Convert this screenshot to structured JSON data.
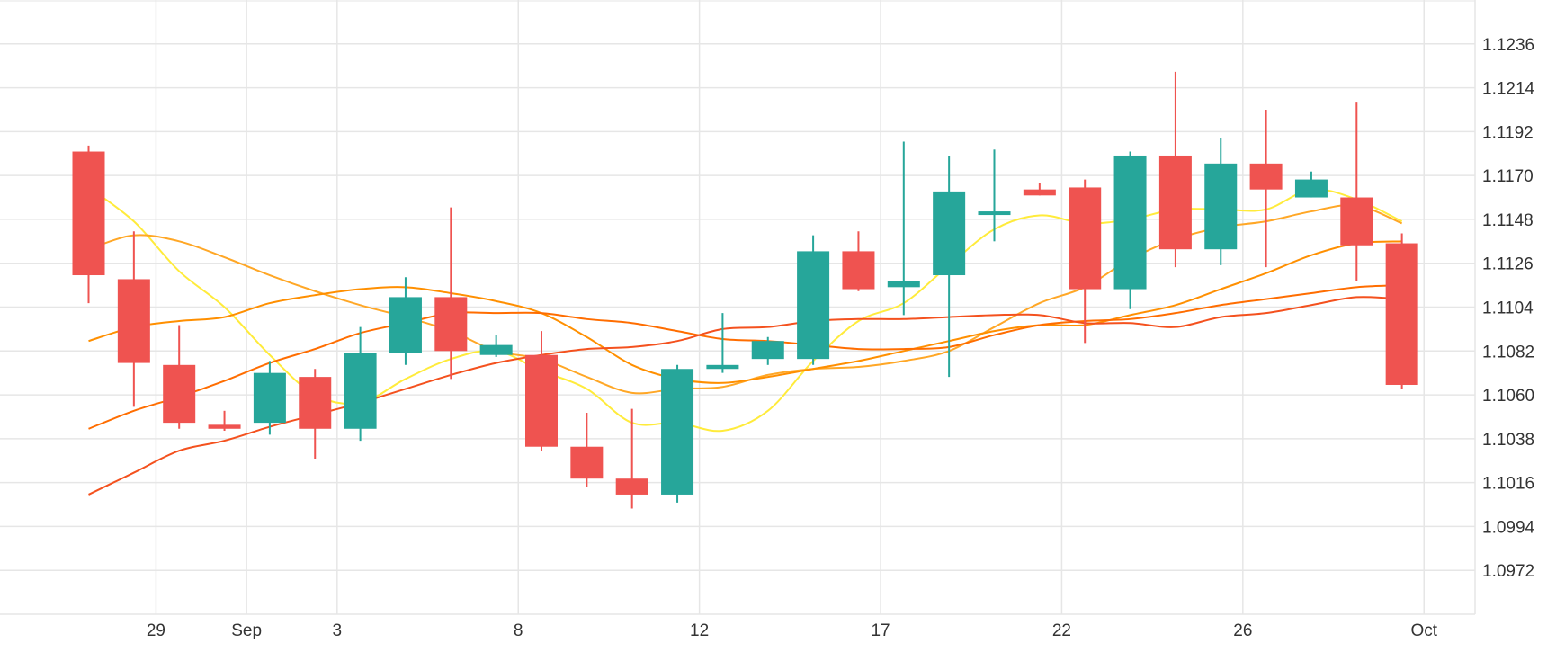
{
  "chart_data": {
    "type": "candlestick",
    "title": "",
    "xlabel": "",
    "ylabel": "",
    "ylim": [
      1.095,
      1.1258
    ],
    "grid": true,
    "y_ticks": [
      "1.1236",
      "1.1214",
      "1.1192",
      "1.1170",
      "1.1148",
      "1.1126",
      "1.1104",
      "1.1082",
      "1.1060",
      "1.1038",
      "1.1016",
      "1.0994",
      "1.0972"
    ],
    "x_ticks": [
      {
        "label": "29",
        "index": 1
      },
      {
        "label": "Sep",
        "index": 3
      },
      {
        "label": "3",
        "index": 5
      },
      {
        "label": "8",
        "index": 9
      },
      {
        "label": "12",
        "index": 13
      },
      {
        "label": "17",
        "index": 17
      },
      {
        "label": "22",
        "index": 21
      },
      {
        "label": "26",
        "index": 25
      },
      {
        "label": "Oct",
        "index": 29
      }
    ],
    "colors": {
      "up": "#26a69a",
      "down": "#ef5350",
      "grid": "#e6e6e6"
    },
    "candles": [
      {
        "o": 1.1182,
        "h": 1.1185,
        "l": 1.1106,
        "c": 1.112
      },
      {
        "o": 1.1118,
        "h": 1.1142,
        "l": 1.1054,
        "c": 1.1076
      },
      {
        "o": 1.1075,
        "h": 1.1095,
        "l": 1.1043,
        "c": 1.1046
      },
      {
        "o": 1.1045,
        "h": 1.1052,
        "l": 1.1042,
        "c": 1.1043
      },
      {
        "o": 1.1046,
        "h": 1.1077,
        "l": 1.104,
        "c": 1.1071
      },
      {
        "o": 1.1069,
        "h": 1.1073,
        "l": 1.1028,
        "c": 1.1043
      },
      {
        "o": 1.1043,
        "h": 1.1094,
        "l": 1.1037,
        "c": 1.1081
      },
      {
        "o": 1.1081,
        "h": 1.1119,
        "l": 1.1075,
        "c": 1.1109
      },
      {
        "o": 1.1109,
        "h": 1.1154,
        "l": 1.1068,
        "c": 1.1082
      },
      {
        "o": 1.108,
        "h": 1.109,
        "l": 1.1079,
        "c": 1.1085
      },
      {
        "o": 1.108,
        "h": 1.1092,
        "l": 1.1032,
        "c": 1.1034
      },
      {
        "o": 1.1034,
        "h": 1.1051,
        "l": 1.1014,
        "c": 1.1018
      },
      {
        "o": 1.1018,
        "h": 1.1053,
        "l": 1.1003,
        "c": 1.101
      },
      {
        "o": 1.101,
        "h": 1.1075,
        "l": 1.1006,
        "c": 1.1073
      },
      {
        "o": 1.1073,
        "h": 1.1101,
        "l": 1.1071,
        "c": 1.1075
      },
      {
        "o": 1.1078,
        "h": 1.1089,
        "l": 1.1075,
        "c": 1.1087
      },
      {
        "o": 1.1078,
        "h": 1.114,
        "l": 1.1075,
        "c": 1.1132
      },
      {
        "o": 1.1132,
        "h": 1.1142,
        "l": 1.1112,
        "c": 1.1113
      },
      {
        "o": 1.1114,
        "h": 1.1187,
        "l": 1.11,
        "c": 1.1117
      },
      {
        "o": 1.112,
        "h": 1.118,
        "l": 1.1069,
        "c": 1.1162
      },
      {
        "o": 1.1152,
        "h": 1.1183,
        "l": 1.1137,
        "c": 1.1152
      },
      {
        "o": 1.1163,
        "h": 1.1166,
        "l": 1.116,
        "c": 1.116
      },
      {
        "o": 1.1164,
        "h": 1.1168,
        "l": 1.1086,
        "c": 1.1113
      },
      {
        "o": 1.1113,
        "h": 1.1182,
        "l": 1.1103,
        "c": 1.118
      },
      {
        "o": 1.118,
        "h": 1.1222,
        "l": 1.1124,
        "c": 1.1133
      },
      {
        "o": 1.1133,
        "h": 1.1189,
        "l": 1.1125,
        "c": 1.1176
      },
      {
        "o": 1.1176,
        "h": 1.1203,
        "l": 1.1124,
        "c": 1.1163
      },
      {
        "o": 1.1159,
        "h": 1.1172,
        "l": 1.1159,
        "c": 1.1168
      },
      {
        "o": 1.1159,
        "h": 1.1207,
        "l": 1.1117,
        "c": 1.1135
      },
      {
        "o": 1.1136,
        "h": 1.1141,
        "l": 1.1063,
        "c": 1.1065
      }
    ],
    "series": [
      {
        "color": "#ffeb3b",
        "points": [
          [
            0,
            1.1164
          ],
          [
            1,
            1.1147
          ],
          [
            2,
            1.1122
          ],
          [
            3,
            1.1104
          ],
          [
            4,
            1.108
          ],
          [
            5,
            1.106
          ],
          [
            6,
            1.1056
          ],
          [
            7,
            1.1068
          ],
          [
            8,
            1.1078
          ],
          [
            9,
            1.1082
          ],
          [
            10,
            1.1072
          ],
          [
            11,
            1.1063
          ],
          [
            12,
            1.1046
          ],
          [
            13,
            1.1046
          ],
          [
            14,
            1.1042
          ],
          [
            15,
            1.1052
          ],
          [
            16,
            1.1077
          ],
          [
            17,
            1.1097
          ],
          [
            18,
            1.1106
          ],
          [
            19,
            1.1125
          ],
          [
            20,
            1.1143
          ],
          [
            21,
            1.115
          ],
          [
            22,
            1.1146
          ],
          [
            23,
            1.1148
          ],
          [
            24,
            1.1153
          ],
          [
            25,
            1.1153
          ],
          [
            26,
            1.1153
          ],
          [
            27,
            1.1163
          ],
          [
            28,
            1.1158
          ],
          [
            29,
            1.1147
          ]
        ]
      },
      {
        "color": "#ffa726",
        "points": [
          [
            0,
            1.1133
          ],
          [
            1,
            1.114
          ],
          [
            2,
            1.1137
          ],
          [
            3,
            1.1129
          ],
          [
            4,
            1.112
          ],
          [
            5,
            1.1112
          ],
          [
            6,
            1.1105
          ],
          [
            7,
            1.1099
          ],
          [
            8,
            1.1092
          ],
          [
            9,
            1.1082
          ],
          [
            10,
            1.1078
          ],
          [
            11,
            1.1069
          ],
          [
            12,
            1.1061
          ],
          [
            13,
            1.1063
          ],
          [
            14,
            1.1064
          ],
          [
            15,
            1.107
          ],
          [
            16,
            1.1073
          ],
          [
            17,
            1.1074
          ],
          [
            18,
            1.1077
          ],
          [
            19,
            1.1082
          ],
          [
            20,
            1.1094
          ],
          [
            21,
            1.1106
          ],
          [
            22,
            1.1114
          ],
          [
            23,
            1.1128
          ],
          [
            24,
            1.1138
          ],
          [
            25,
            1.1144
          ],
          [
            26,
            1.1147
          ],
          [
            27,
            1.1152
          ],
          [
            28,
            1.1155
          ],
          [
            29,
            1.1146
          ]
        ]
      },
      {
        "color": "#ff8f00",
        "points": [
          [
            0,
            1.1087
          ],
          [
            1,
            1.1094
          ],
          [
            2,
            1.1097
          ],
          [
            3,
            1.1099
          ],
          [
            4,
            1.1106
          ],
          [
            5,
            1.111
          ],
          [
            6,
            1.1113
          ],
          [
            7,
            1.1114
          ],
          [
            8,
            1.1111
          ],
          [
            9,
            1.1107
          ],
          [
            10,
            1.1101
          ],
          [
            11,
            1.1089
          ],
          [
            12,
            1.1075
          ],
          [
            13,
            1.1068
          ],
          [
            14,
            1.1066
          ],
          [
            15,
            1.1069
          ],
          [
            16,
            1.1073
          ],
          [
            17,
            1.1077
          ],
          [
            18,
            1.1082
          ],
          [
            19,
            1.1087
          ],
          [
            20,
            1.1092
          ],
          [
            21,
            1.1095
          ],
          [
            22,
            1.1095
          ],
          [
            23,
            1.11
          ],
          [
            24,
            1.1105
          ],
          [
            25,
            1.1113
          ],
          [
            26,
            1.1121
          ],
          [
            27,
            1.113
          ],
          [
            28,
            1.1136
          ],
          [
            29,
            1.1137
          ]
        ]
      },
      {
        "color": "#ff6d00",
        "points": [
          [
            0,
            1.1043
          ],
          [
            1,
            1.1052
          ],
          [
            2,
            1.1059
          ],
          [
            3,
            1.1067
          ],
          [
            4,
            1.1076
          ],
          [
            5,
            1.1083
          ],
          [
            6,
            1.1091
          ],
          [
            7,
            1.1096
          ],
          [
            8,
            1.1101
          ],
          [
            9,
            1.1101
          ],
          [
            10,
            1.1101
          ],
          [
            11,
            1.1098
          ],
          [
            12,
            1.1096
          ],
          [
            13,
            1.1092
          ],
          [
            14,
            1.1088
          ],
          [
            15,
            1.1087
          ],
          [
            16,
            1.1085
          ],
          [
            17,
            1.1083
          ],
          [
            18,
            1.1083
          ],
          [
            19,
            1.1084
          ],
          [
            20,
            1.109
          ],
          [
            21,
            1.1095
          ],
          [
            22,
            1.1097
          ],
          [
            23,
            1.1098
          ],
          [
            24,
            1.1101
          ],
          [
            25,
            1.1105
          ],
          [
            26,
            1.1108
          ],
          [
            27,
            1.1111
          ],
          [
            28,
            1.1114
          ],
          [
            29,
            1.1115
          ]
        ]
      },
      {
        "color": "#f4511e",
        "points": [
          [
            0,
            1.101
          ],
          [
            1,
            1.1021
          ],
          [
            2,
            1.1032
          ],
          [
            3,
            1.1037
          ],
          [
            4,
            1.1044
          ],
          [
            5,
            1.105
          ],
          [
            6,
            1.1056
          ],
          [
            7,
            1.1063
          ],
          [
            8,
            1.107
          ],
          [
            9,
            1.1076
          ],
          [
            10,
            1.108
          ],
          [
            11,
            1.1083
          ],
          [
            12,
            1.1084
          ],
          [
            13,
            1.1087
          ],
          [
            14,
            1.1093
          ],
          [
            15,
            1.1094
          ],
          [
            16,
            1.1097
          ],
          [
            17,
            1.1098
          ],
          [
            18,
            1.1098
          ],
          [
            19,
            1.1099
          ],
          [
            20,
            1.11
          ],
          [
            21,
            1.11
          ],
          [
            22,
            1.1096
          ],
          [
            23,
            1.1096
          ],
          [
            24,
            1.1094
          ],
          [
            25,
            1.1099
          ],
          [
            26,
            1.1101
          ],
          [
            27,
            1.1105
          ],
          [
            28,
            1.1109
          ],
          [
            29,
            1.1108
          ]
        ]
      }
    ]
  }
}
